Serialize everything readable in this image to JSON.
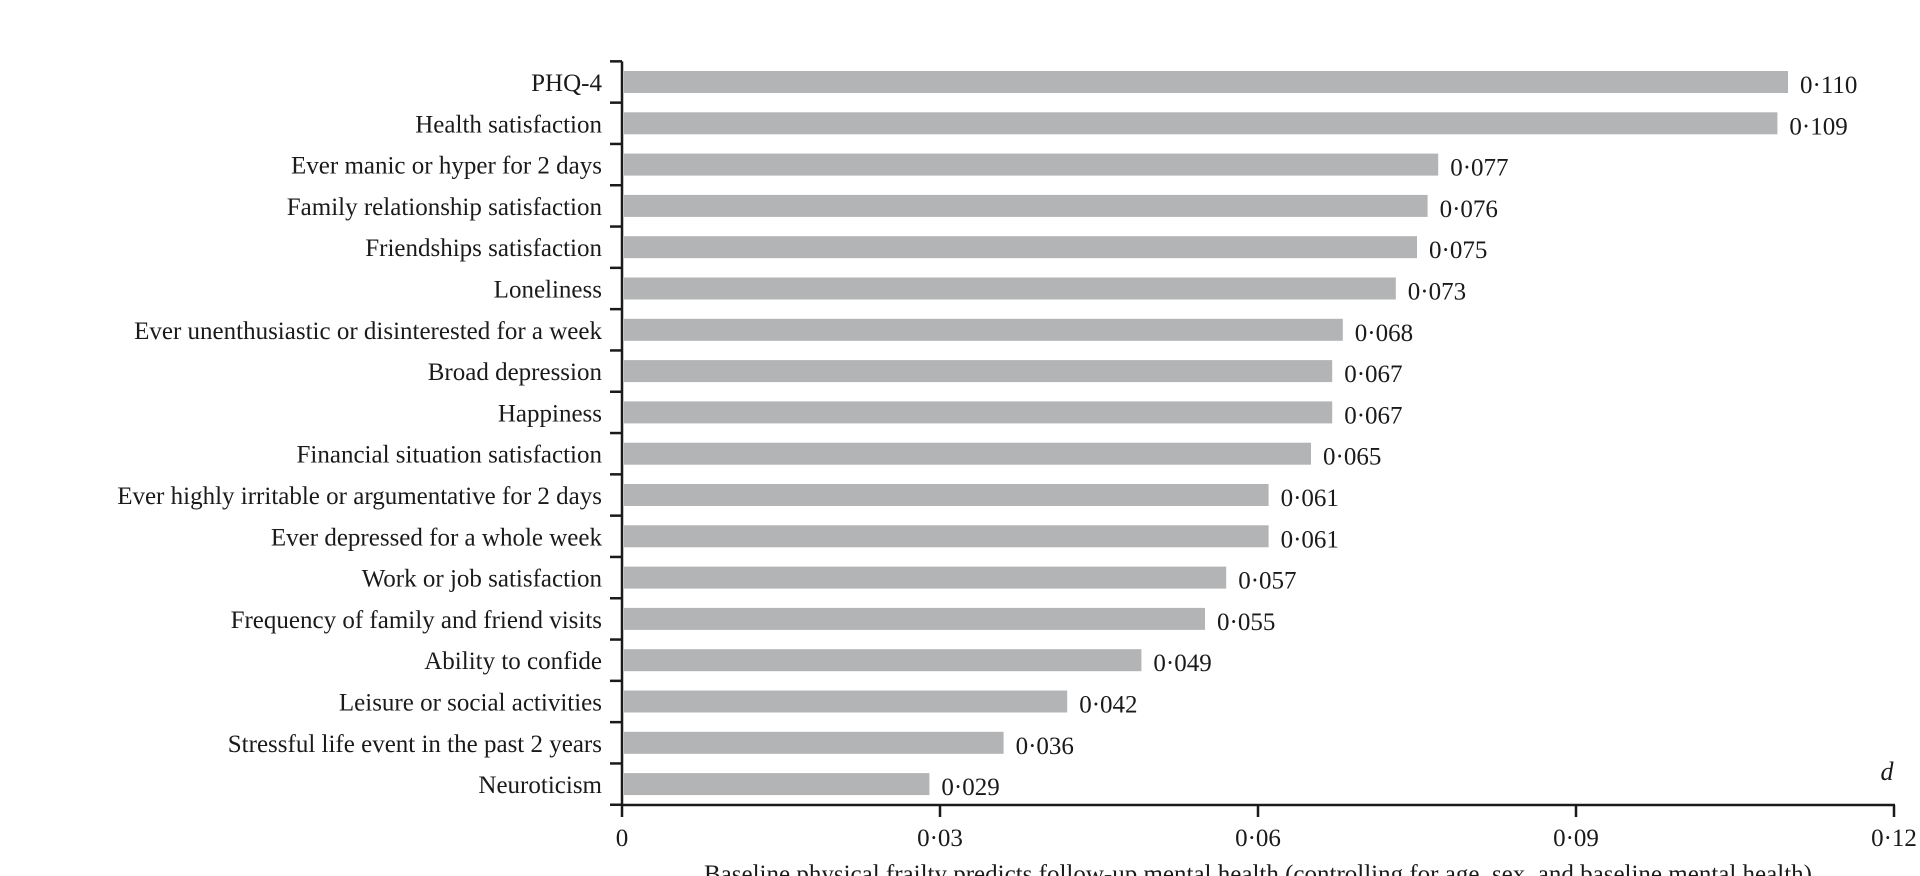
{
  "chart_data": {
    "type": "bar",
    "orientation": "horizontal",
    "categories": [
      "PHQ-4",
      "Health satisfaction",
      "Ever manic or hyper for 2 days",
      "Family relationship satisfaction",
      "Friendships satisfaction",
      "Loneliness",
      "Ever unenthusiastic or disinterested for a week",
      "Broad depression",
      "Happiness",
      "Financial situation satisfaction",
      "Ever highly irritable or argumentative for 2 days",
      "Ever depressed for a whole week",
      "Work or job satisfaction",
      "Frequency of family and friend visits",
      "Ability to confide",
      "Leisure or social activities",
      "Stressful life event in the past 2 years",
      "Neuroticism"
    ],
    "values": [
      0.11,
      0.109,
      0.077,
      0.076,
      0.075,
      0.073,
      0.068,
      0.067,
      0.067,
      0.065,
      0.061,
      0.061,
      0.057,
      0.055,
      0.049,
      0.042,
      0.036,
      0.029
    ],
    "value_labels": [
      "0·110",
      "0·109",
      "0·077",
      "0·076",
      "0·075",
      "0·073",
      "0·068",
      "0·067",
      "0·067",
      "0·065",
      "0·061",
      "0·061",
      "0·057",
      "0·055",
      "0·049",
      "0·042",
      "0·036",
      "0·029"
    ],
    "xlim": [
      0,
      0.12
    ],
    "xticks": [
      0,
      0.03,
      0.06,
      0.09,
      0.12
    ],
    "xtick_labels": [
      "0",
      "0·03",
      "0·06",
      "0·09",
      "0·12"
    ],
    "xlabel": "Baseline physical frailty predicts follow-up mental health (controlling for age, sex, and baseline mental health)",
    "annotation": "d",
    "bar_color": "#b3b4b6",
    "grid": false
  }
}
